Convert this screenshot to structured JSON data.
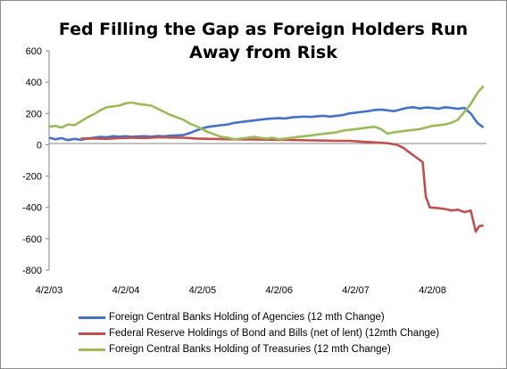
{
  "chart_data": {
    "type": "line",
    "title": "Fed Filling the Gap as Foreign Holders Run Away from Risk",
    "title_lines": [
      "Fed Filling the Gap as Foreign Holders Run",
      "Away from Risk"
    ],
    "xlabel": "",
    "ylabel": "",
    "ylim": [
      -800,
      600
    ],
    "yticks": [
      "600",
      "400",
      "200",
      "0",
      "-200",
      "-400",
      "-600",
      "-800"
    ],
    "xticks": [
      "4/2/03",
      "4/2/04",
      "4/2/05",
      "4/2/06",
      "4/2/07",
      "4/2/08"
    ],
    "xrange": [
      "2003-04-02",
      "2008-12-15"
    ],
    "grid": false,
    "legend_position": "bottom",
    "series": [
      {
        "name": "Foreign Central Banks Holding of Agencies (12 mth Change)",
        "color": "#4472C4",
        "points": [
          [
            "2003-04-02",
            45
          ],
          [
            "2003-05-01",
            35
          ],
          [
            "2003-06-01",
            42
          ],
          [
            "2003-07-01",
            30
          ],
          [
            "2003-08-01",
            38
          ],
          [
            "2003-09-01",
            32
          ],
          [
            "2003-10-01",
            40
          ],
          [
            "2003-11-01",
            45
          ],
          [
            "2003-12-01",
            50
          ],
          [
            "2004-01-01",
            48
          ],
          [
            "2004-02-01",
            55
          ],
          [
            "2004-03-01",
            52
          ],
          [
            "2004-04-01",
            55
          ],
          [
            "2004-05-01",
            50
          ],
          [
            "2004-06-01",
            53
          ],
          [
            "2004-07-01",
            55
          ],
          [
            "2004-08-01",
            52
          ],
          [
            "2004-09-01",
            56
          ],
          [
            "2004-10-01",
            54
          ],
          [
            "2004-11-01",
            58
          ],
          [
            "2004-12-01",
            60
          ],
          [
            "2005-01-01",
            62
          ],
          [
            "2005-02-01",
            75
          ],
          [
            "2005-03-01",
            90
          ],
          [
            "2005-04-01",
            105
          ],
          [
            "2005-05-01",
            115
          ],
          [
            "2005-06-01",
            120
          ],
          [
            "2005-07-01",
            125
          ],
          [
            "2005-08-01",
            130
          ],
          [
            "2005-09-01",
            140
          ],
          [
            "2005-10-01",
            145
          ],
          [
            "2005-11-01",
            150
          ],
          [
            "2005-12-01",
            155
          ],
          [
            "2006-01-01",
            160
          ],
          [
            "2006-02-01",
            165
          ],
          [
            "2006-03-01",
            168
          ],
          [
            "2006-04-01",
            170
          ],
          [
            "2006-05-01",
            168
          ],
          [
            "2006-06-01",
            175
          ],
          [
            "2006-07-01",
            178
          ],
          [
            "2006-08-01",
            180
          ],
          [
            "2006-09-01",
            178
          ],
          [
            "2006-10-01",
            182
          ],
          [
            "2006-11-01",
            185
          ],
          [
            "2006-12-01",
            180
          ],
          [
            "2007-01-01",
            185
          ],
          [
            "2007-02-01",
            190
          ],
          [
            "2007-03-01",
            200
          ],
          [
            "2007-04-01",
            205
          ],
          [
            "2007-05-01",
            210
          ],
          [
            "2007-06-01",
            215
          ],
          [
            "2007-07-01",
            222
          ],
          [
            "2007-08-01",
            225
          ],
          [
            "2007-09-01",
            220
          ],
          [
            "2007-10-01",
            215
          ],
          [
            "2007-11-01",
            225
          ],
          [
            "2007-12-01",
            235
          ],
          [
            "2008-01-01",
            240
          ],
          [
            "2008-02-01",
            232
          ],
          [
            "2008-03-01",
            238
          ],
          [
            "2008-04-01",
            235
          ],
          [
            "2008-05-01",
            230
          ],
          [
            "2008-06-01",
            240
          ],
          [
            "2008-07-01",
            235
          ],
          [
            "2008-08-01",
            230
          ],
          [
            "2008-09-01",
            235
          ],
          [
            "2008-10-01",
            200
          ],
          [
            "2008-11-01",
            140
          ],
          [
            "2008-12-01",
            110
          ]
        ]
      },
      {
        "name": "Federal Reserve Holdings of Bond and Bills (net of lent) (12mth Change)",
        "color": "#C0504D",
        "points": [
          [
            "2003-09-01",
            40
          ],
          [
            "2003-11-01",
            40
          ],
          [
            "2004-01-01",
            38
          ],
          [
            "2004-03-01",
            42
          ],
          [
            "2004-05-01",
            45
          ],
          [
            "2004-07-01",
            43
          ],
          [
            "2004-09-01",
            48
          ],
          [
            "2004-11-01",
            46
          ],
          [
            "2005-01-01",
            45
          ],
          [
            "2005-03-01",
            40
          ],
          [
            "2005-05-01",
            38
          ],
          [
            "2005-07-01",
            36
          ],
          [
            "2005-09-01",
            35
          ],
          [
            "2005-11-01",
            34
          ],
          [
            "2006-01-01",
            33
          ],
          [
            "2006-03-01",
            32
          ],
          [
            "2006-05-01",
            31
          ],
          [
            "2006-07-01",
            30
          ],
          [
            "2006-09-01",
            28
          ],
          [
            "2006-11-01",
            27
          ],
          [
            "2007-01-01",
            25
          ],
          [
            "2007-03-01",
            25
          ],
          [
            "2007-05-01",
            20
          ],
          [
            "2007-07-01",
            15
          ],
          [
            "2007-09-01",
            10
          ],
          [
            "2007-10-15",
            0
          ],
          [
            "2007-11-15",
            -20
          ],
          [
            "2007-12-15",
            -50
          ],
          [
            "2008-01-15",
            -80
          ],
          [
            "2008-02-15",
            -110
          ],
          [
            "2008-03-01",
            -330
          ],
          [
            "2008-03-20",
            -400
          ],
          [
            "2008-05-01",
            -405
          ],
          [
            "2008-06-01",
            -410
          ],
          [
            "2008-07-01",
            -420
          ],
          [
            "2008-08-01",
            -415
          ],
          [
            "2008-09-01",
            -430
          ],
          [
            "2008-10-01",
            -420
          ],
          [
            "2008-10-25",
            -555
          ],
          [
            "2008-11-10",
            -520
          ],
          [
            "2008-12-01",
            -515
          ]
        ]
      },
      {
        "name": "Foreign Central Banks Holding of Treasuries (12 mth Change)",
        "color": "#9BBB59",
        "points": [
          [
            "2003-04-02",
            115
          ],
          [
            "2003-05-01",
            120
          ],
          [
            "2003-06-01",
            110
          ],
          [
            "2003-07-01",
            130
          ],
          [
            "2003-08-01",
            125
          ],
          [
            "2003-09-01",
            150
          ],
          [
            "2003-10-01",
            175
          ],
          [
            "2003-11-01",
            195
          ],
          [
            "2003-12-01",
            220
          ],
          [
            "2004-01-01",
            240
          ],
          [
            "2004-02-01",
            245
          ],
          [
            "2004-03-01",
            250
          ],
          [
            "2004-04-01",
            265
          ],
          [
            "2004-05-01",
            270
          ],
          [
            "2004-06-01",
            260
          ],
          [
            "2004-07-01",
            255
          ],
          [
            "2004-08-01",
            250
          ],
          [
            "2004-09-01",
            230
          ],
          [
            "2004-10-01",
            210
          ],
          [
            "2004-11-01",
            190
          ],
          [
            "2004-12-01",
            175
          ],
          [
            "2005-01-01",
            160
          ],
          [
            "2005-02-01",
            135
          ],
          [
            "2005-03-01",
            120
          ],
          [
            "2005-04-01",
            100
          ],
          [
            "2005-05-01",
            80
          ],
          [
            "2005-06-01",
            65
          ],
          [
            "2005-07-01",
            50
          ],
          [
            "2005-08-01",
            45
          ],
          [
            "2005-09-01",
            35
          ],
          [
            "2005-10-01",
            40
          ],
          [
            "2005-11-01",
            45
          ],
          [
            "2005-12-01",
            50
          ],
          [
            "2006-01-01",
            45
          ],
          [
            "2006-02-01",
            40
          ],
          [
            "2006-03-01",
            45
          ],
          [
            "2006-04-01",
            35
          ],
          [
            "2006-05-01",
            40
          ],
          [
            "2006-06-01",
            45
          ],
          [
            "2006-07-01",
            50
          ],
          [
            "2006-08-01",
            55
          ],
          [
            "2006-09-01",
            60
          ],
          [
            "2006-10-01",
            65
          ],
          [
            "2006-11-01",
            70
          ],
          [
            "2006-12-01",
            75
          ],
          [
            "2007-01-01",
            80
          ],
          [
            "2007-02-01",
            90
          ],
          [
            "2007-03-01",
            95
          ],
          [
            "2007-04-01",
            100
          ],
          [
            "2007-05-01",
            105
          ],
          [
            "2007-06-01",
            110
          ],
          [
            "2007-07-01",
            115
          ],
          [
            "2007-08-01",
            100
          ],
          [
            "2007-09-01",
            70
          ],
          [
            "2007-10-01",
            80
          ],
          [
            "2007-11-01",
            85
          ],
          [
            "2007-12-01",
            90
          ],
          [
            "2008-01-01",
            95
          ],
          [
            "2008-02-01",
            100
          ],
          [
            "2008-03-01",
            110
          ],
          [
            "2008-04-01",
            120
          ],
          [
            "2008-05-01",
            125
          ],
          [
            "2008-06-01",
            130
          ],
          [
            "2008-07-01",
            140
          ],
          [
            "2008-08-01",
            160
          ],
          [
            "2008-09-01",
            210
          ],
          [
            "2008-10-01",
            260
          ],
          [
            "2008-11-01",
            330
          ],
          [
            "2008-12-01",
            375
          ]
        ]
      }
    ]
  }
}
